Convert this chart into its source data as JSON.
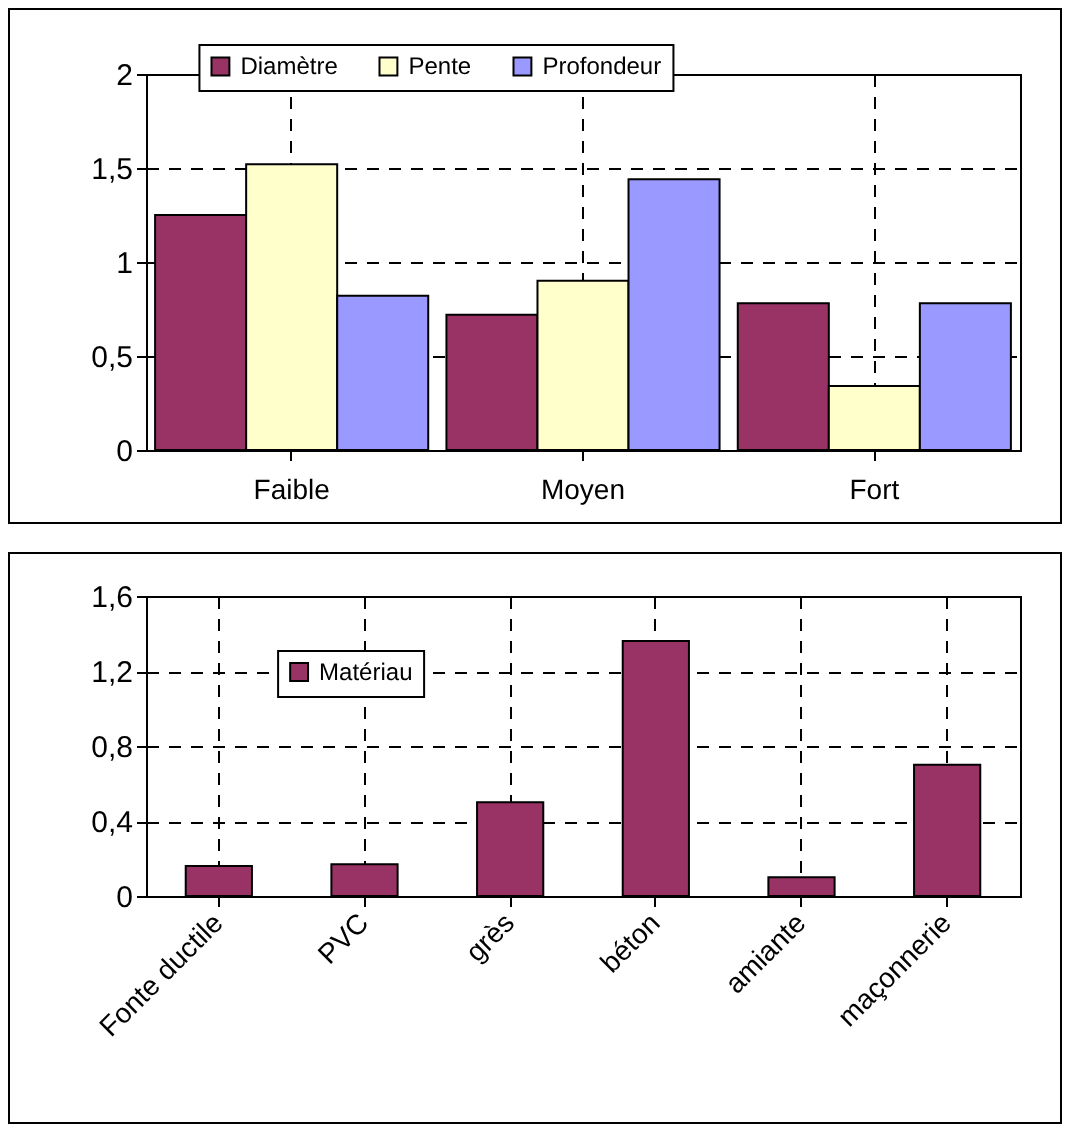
{
  "chart_data": [
    {
      "type": "bar",
      "categories": [
        "Faible",
        "Moyen",
        "Fort"
      ],
      "series": [
        {
          "name": "Diamètre",
          "color": "#993366",
          "values": [
            1.25,
            0.72,
            0.78
          ]
        },
        {
          "name": "Pente",
          "color": "#ffffcc",
          "values": [
            1.52,
            0.9,
            0.34
          ]
        },
        {
          "name": "Profondeur",
          "color": "#9999ff",
          "values": [
            0.82,
            1.44,
            0.78
          ]
        }
      ],
      "ylim": [
        0,
        2
      ],
      "yticks": [
        0,
        {
          "value": 0.5,
          "label": "0,5"
        },
        1,
        {
          "value": 1.5,
          "label": "1,5"
        },
        2
      ],
      "grid": true,
      "legend": "top"
    },
    {
      "type": "bar",
      "categories": [
        "Fonte ductile",
        "PVC",
        "grès",
        "béton",
        "amiante",
        "maçonnerie"
      ],
      "series": [
        {
          "name": "Matériau",
          "color": "#993366",
          "values": [
            0.16,
            0.17,
            0.5,
            1.36,
            0.1,
            0.7
          ]
        }
      ],
      "ylim": [
        0,
        1.6
      ],
      "yticks": [
        0,
        {
          "value": 0.4,
          "label": "0,4"
        },
        {
          "value": 0.8,
          "label": "0,8"
        },
        {
          "value": 1.2,
          "label": "1,2"
        },
        {
          "value": 1.6,
          "label": "1,6"
        }
      ],
      "grid": true,
      "legend": "left"
    }
  ]
}
